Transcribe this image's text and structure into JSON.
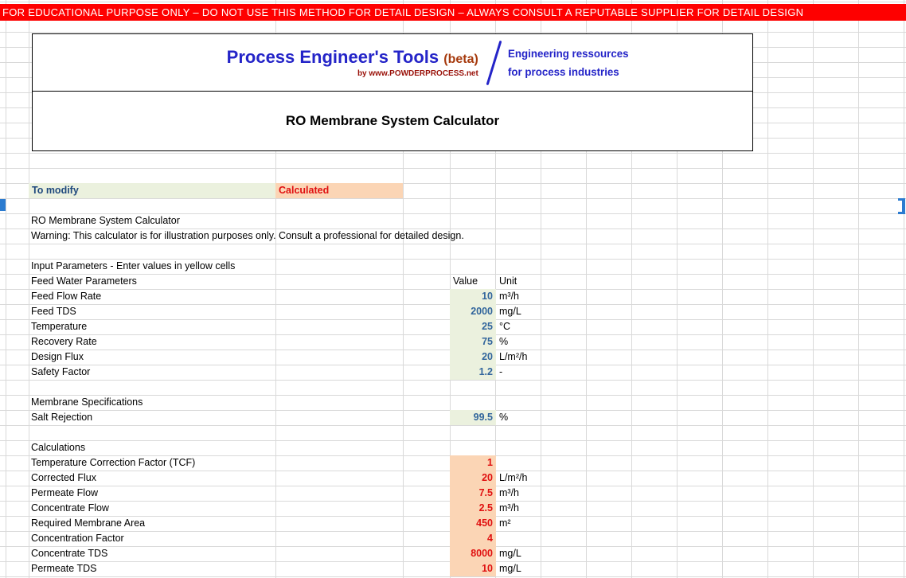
{
  "banner": {
    "text": "FOR EDUCATIONAL PURPOSE ONLY – DO NOT USE THIS METHOD FOR DETAIL DESIGN – ALWAYS CONSULT A REPUTABLE SUPPLIER FOR DETAIL DESIGN"
  },
  "logo": {
    "title": "Process Engineer's Tools",
    "beta": "(beta)",
    "byline": "by www.POWDERPROCESS.net",
    "tagline_line1": "Engineering ressources",
    "tagline_line2": "for process industries"
  },
  "header": {
    "title": "RO Membrane System Calculator"
  },
  "legend": {
    "modify_label": "To modify",
    "calculated_label": "Calculated"
  },
  "table": {
    "value_header": "Value",
    "unit_header": "Unit",
    "rows": [
      {
        "type": "blank"
      },
      {
        "type": "text",
        "label": "RO Membrane System Calculator"
      },
      {
        "type": "text",
        "label": "Warning: This calculator is for illustration purposes only. Consult a professional for detailed design."
      },
      {
        "type": "blank"
      },
      {
        "type": "text",
        "label": "Input Parameters - Enter values in yellow cells"
      },
      {
        "type": "columns-header",
        "label": "Feed Water Parameters"
      },
      {
        "type": "input",
        "label": "Feed Flow Rate",
        "value": "10",
        "unit": "m³/h"
      },
      {
        "type": "input",
        "label": "Feed TDS",
        "value": "2000",
        "unit": "mg/L"
      },
      {
        "type": "input",
        "label": "Temperature",
        "value": "25",
        "unit": "°C"
      },
      {
        "type": "input",
        "label": "Recovery Rate",
        "value": "75",
        "unit": "%"
      },
      {
        "type": "input",
        "label": "Design Flux",
        "value": "20",
        "unit": "L/m²/h"
      },
      {
        "type": "input",
        "label": "Safety Factor",
        "value": "1.2",
        "unit": "-"
      },
      {
        "type": "blank"
      },
      {
        "type": "section",
        "label": "Membrane Specifications"
      },
      {
        "type": "input",
        "label": "Salt Rejection",
        "value": "99.5",
        "unit": "%"
      },
      {
        "type": "blank"
      },
      {
        "type": "section",
        "label": "Calculations"
      },
      {
        "type": "calc",
        "label": "Temperature Correction Factor (TCF)",
        "value": "1",
        "unit": ""
      },
      {
        "type": "calc",
        "label": "Corrected Flux",
        "value": "20",
        "unit": "L/m²/h"
      },
      {
        "type": "calc",
        "label": "Permeate Flow",
        "value": "7.5",
        "unit": "m³/h"
      },
      {
        "type": "calc",
        "label": "Concentrate Flow",
        "value": "2.5",
        "unit": "m³/h"
      },
      {
        "type": "calc",
        "label": "Required Membrane Area",
        "value": "450",
        "unit": "m²"
      },
      {
        "type": "calc",
        "label": "Concentration Factor",
        "value": "4",
        "unit": ""
      },
      {
        "type": "calc",
        "label": "Concentrate TDS",
        "value": "8000",
        "unit": "mg/L"
      },
      {
        "type": "calc",
        "label": "Permeate TDS",
        "value": "10",
        "unit": "mg/L"
      }
    ]
  },
  "colors": {
    "banner_bg": "#FE0000",
    "brand_blue": "#2424C8",
    "beta_brown": "#A63A0D",
    "byline_maroon": "#991008",
    "modify_fg": "#1F497D",
    "input_bg": "#EBF1DE",
    "calc_bg": "#FBD5B5",
    "input_value": "#31659C",
    "calc_value": "#E01010"
  }
}
